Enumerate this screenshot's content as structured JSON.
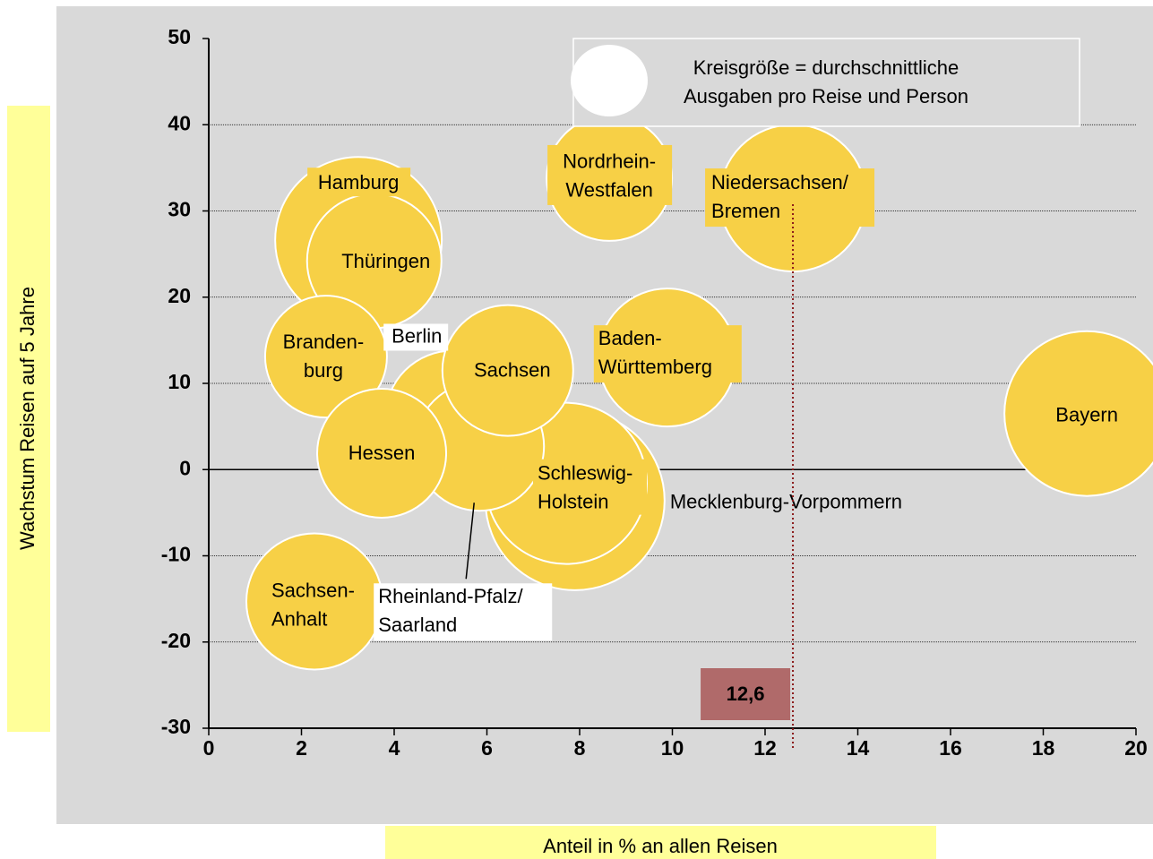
{
  "chart_data": {
    "type": "bubble",
    "x_label": "Anteil in % an allen Reisen",
    "y_label": "Wachstum Reisen auf 5 Jahre",
    "legend_text": [
      "Kreisgröße = durchschnittliche",
      "Ausgaben pro Reise und Person"
    ],
    "color": "#f7d046",
    "xlim": [
      0,
      20
    ],
    "ylim": [
      -30,
      50
    ],
    "xticks": [
      0,
      2,
      4,
      6,
      8,
      10,
      12,
      14,
      16,
      18,
      20
    ],
    "yticks": [
      -30,
      -20,
      -10,
      0,
      10,
      20,
      30,
      40,
      50
    ],
    "grid": true,
    "series": [
      {
        "labels": [
          [
            "Hamburg"
          ],
          [
            "Thüringen"
          ],
          [
            "Nordrhein-",
            "Westfalen"
          ],
          [
            "Niedersachsen/",
            "Bremen"
          ],
          [
            "Branden-",
            "burg"
          ],
          [
            "Berlin"
          ],
          [
            "Mecklenburg-Vorpommern"
          ],
          [
            "Schleswig-",
            "Holstein"
          ],
          [
            "Rheinland-Pfalz/",
            "Saarland"
          ],
          [
            "Hessen"
          ],
          [
            "Sachsen"
          ],
          [
            "Baden-",
            "Württemberg"
          ],
          [
            "Bayern"
          ],
          [
            "Sachsen-",
            "Anhalt"
          ]
        ],
        "x": [
          3.23,
          3.57,
          8.64,
          12.6,
          2.53,
          5.26,
          7.9,
          7.71,
          5.84,
          3.73,
          6.45,
          9.89,
          18.94,
          2.28
        ],
        "y": [
          26.6,
          24.2,
          33.8,
          31.5,
          13.1,
          6.0,
          -3.6,
          -1.6,
          2.7,
          1.9,
          11.5,
          13.0,
          6.5,
          -15.3
        ],
        "size": [
          93,
          75,
          70,
          82,
          68,
          75,
          100,
          90,
          72,
          72,
          73,
          77,
          92,
          76
        ]
      }
    ],
    "reference": {
      "value": 12.6,
      "label": "12,6"
    }
  }
}
